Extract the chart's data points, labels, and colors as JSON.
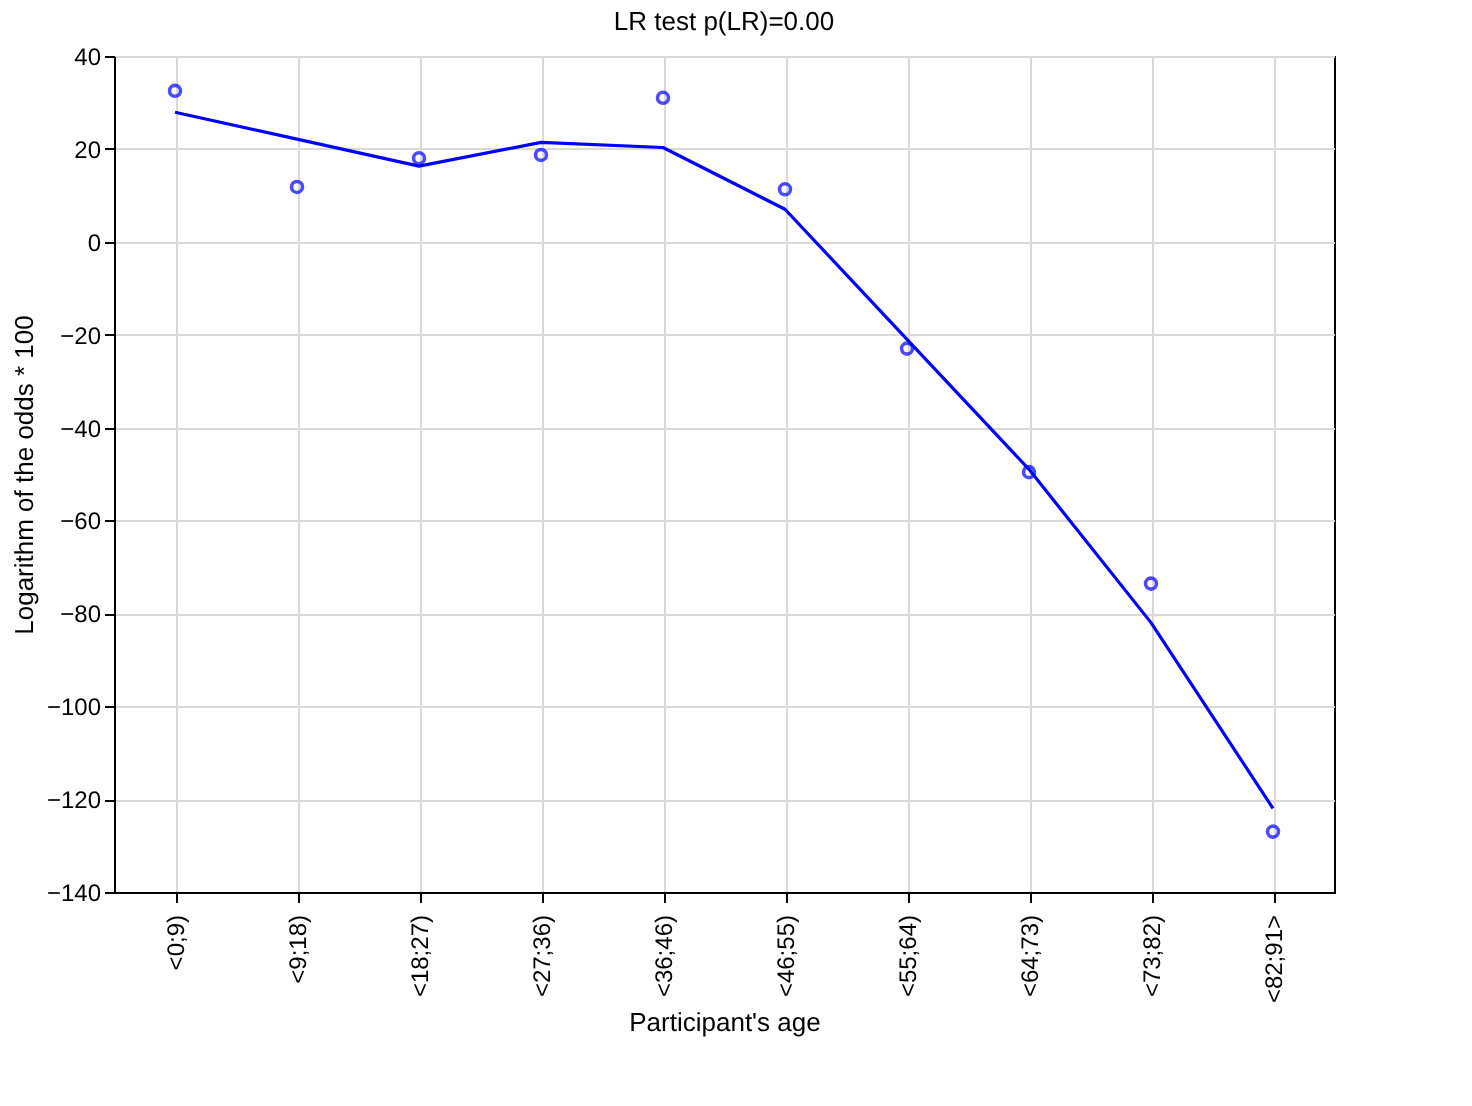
{
  "chart_data": {
    "type": "scatter",
    "title": "LR test p(LR)=0.00",
    "xlabel": "Participant's age",
    "ylabel": "Logarithm of the odds * 100",
    "categories": [
      "<0;9)",
      "<9;18)",
      "<18;27)",
      "<27;36)",
      "<36;46)",
      "<46;55)",
      "<55;64)",
      "<64;73)",
      "<73;82)",
      "<82;91>"
    ],
    "series": [
      {
        "color": "#0000ff",
        "marker": "circle",
        "values": [
          32.5,
          11.8,
          18,
          18.7,
          31,
          11.3,
          -23,
          -49.6,
          -73.6,
          -127
        ]
      },
      {
        "type": "line",
        "color": "#0000ff",
        "marker": "none",
        "values": [
          27.9,
          22.1,
          16.3,
          21.4,
          20.3,
          7,
          -21,
          -49,
          -82,
          -122
        ]
      }
    ],
    "ylim": [
      -140,
      40
    ],
    "yticks": [
      -140,
      -120,
      -100,
      -80,
      -60,
      -40,
      -20,
      0,
      20,
      40
    ],
    "grid": true
  }
}
